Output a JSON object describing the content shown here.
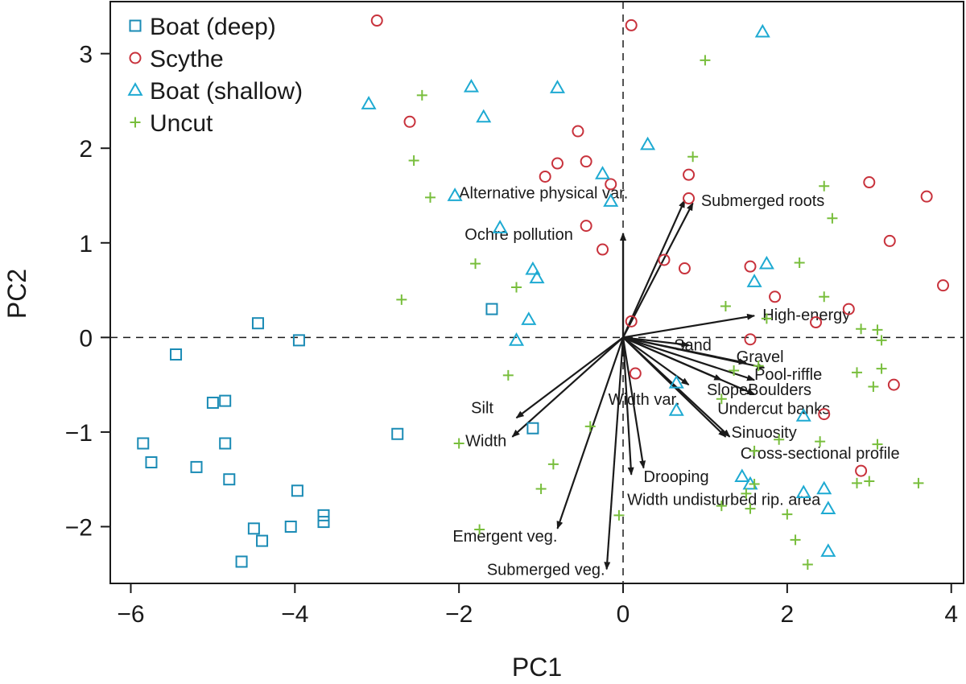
{
  "chart_data": {
    "type": "scatter",
    "title": "",
    "xlabel": "PC1",
    "ylabel": "PC2",
    "xlim": [
      -6.25,
      4.15
    ],
    "ylim": [
      -2.6,
      3.55
    ],
    "xticks": [
      "−6",
      "−4",
      "−2",
      "0",
      "2",
      "4"
    ],
    "xtick_values": [
      -6,
      -4,
      -2,
      0,
      2,
      4
    ],
    "yticks": [
      "−2",
      "−1",
      "0",
      "1",
      "2",
      "3"
    ],
    "ytick_values": [
      -2,
      -1,
      0,
      1,
      2,
      3
    ],
    "zero_lines": true,
    "grid": false,
    "legend_position": "top-left",
    "series": [
      {
        "name": "Boat (deep)",
        "marker": "square",
        "color": "#1a8bb5",
        "points": [
          [
            -4.45,
            0.15
          ],
          [
            -3.95,
            -0.03
          ],
          [
            -5.45,
            -0.18
          ],
          [
            -4.85,
            -0.67
          ],
          [
            -5.0,
            -0.69
          ],
          [
            -4.85,
            -1.12
          ],
          [
            -5.85,
            -1.12
          ],
          [
            -5.75,
            -1.32
          ],
          [
            -5.2,
            -1.37
          ],
          [
            -4.8,
            -1.5
          ],
          [
            -3.97,
            -1.62
          ],
          [
            -3.65,
            -1.88
          ],
          [
            -3.65,
            -1.95
          ],
          [
            -4.05,
            -2.0
          ],
          [
            -4.5,
            -2.02
          ],
          [
            -4.4,
            -2.15
          ],
          [
            -4.65,
            -2.37
          ],
          [
            -2.75,
            -1.02
          ],
          [
            -1.1,
            -0.96
          ],
          [
            -1.6,
            0.3
          ]
        ]
      },
      {
        "name": "Scythe",
        "marker": "circle",
        "color": "#c8323c",
        "points": [
          [
            -3.0,
            3.35
          ],
          [
            0.1,
            3.3
          ],
          [
            -2.6,
            2.28
          ],
          [
            -0.55,
            2.18
          ],
          [
            -0.8,
            1.84
          ],
          [
            -0.45,
            1.86
          ],
          [
            -0.95,
            1.7
          ],
          [
            -0.15,
            1.62
          ],
          [
            0.8,
            1.72
          ],
          [
            0.8,
            1.47
          ],
          [
            -0.45,
            1.18
          ],
          [
            -0.25,
            0.93
          ],
          [
            0.5,
            0.82
          ],
          [
            0.75,
            0.73
          ],
          [
            1.55,
            0.75
          ],
          [
            1.85,
            0.43
          ],
          [
            3.0,
            1.64
          ],
          [
            3.7,
            1.49
          ],
          [
            3.25,
            1.02
          ],
          [
            3.9,
            0.55
          ],
          [
            2.75,
            0.3
          ],
          [
            2.35,
            0.16
          ],
          [
            1.55,
            -0.02
          ],
          [
            0.1,
            0.17
          ],
          [
            0.15,
            -0.38
          ],
          [
            3.3,
            -0.5
          ],
          [
            2.45,
            -0.81
          ],
          [
            2.9,
            -1.41
          ]
        ]
      },
      {
        "name": "Boat (shallow)",
        "marker": "triangle",
        "color": "#1eaad2",
        "points": [
          [
            1.7,
            3.23
          ],
          [
            -3.1,
            2.47
          ],
          [
            -1.85,
            2.65
          ],
          [
            -0.8,
            2.64
          ],
          [
            -1.7,
            2.33
          ],
          [
            0.3,
            2.04
          ],
          [
            -0.25,
            1.73
          ],
          [
            -0.15,
            1.44
          ],
          [
            -2.05,
            1.5
          ],
          [
            -1.5,
            1.16
          ],
          [
            -1.1,
            0.72
          ],
          [
            -1.05,
            0.63
          ],
          [
            1.75,
            0.78
          ],
          [
            1.6,
            0.59
          ],
          [
            -1.15,
            0.19
          ],
          [
            -1.3,
            -0.03
          ],
          [
            0.65,
            -0.48
          ],
          [
            0.65,
            -0.77
          ],
          [
            2.2,
            -0.83
          ],
          [
            1.45,
            -1.47
          ],
          [
            1.55,
            -1.55
          ],
          [
            2.45,
            -1.6
          ],
          [
            2.2,
            -1.64
          ],
          [
            2.5,
            -1.81
          ],
          [
            2.5,
            -2.26
          ]
        ]
      },
      {
        "name": "Uncut",
        "marker": "plus",
        "color": "#78be3c",
        "points": [
          [
            1.0,
            2.93
          ],
          [
            -2.45,
            2.56
          ],
          [
            -2.55,
            1.87
          ],
          [
            0.85,
            1.91
          ],
          [
            -2.35,
            1.48
          ],
          [
            2.45,
            1.6
          ],
          [
            2.55,
            1.26
          ],
          [
            -1.8,
            0.78
          ],
          [
            -1.3,
            0.53
          ],
          [
            -2.7,
            0.4
          ],
          [
            2.15,
            0.79
          ],
          [
            2.45,
            0.43
          ],
          [
            1.25,
            0.33
          ],
          [
            1.75,
            0.2
          ],
          [
            2.9,
            0.09
          ],
          [
            3.1,
            0.08
          ],
          [
            3.15,
            -0.03
          ],
          [
            -1.4,
            -0.4
          ],
          [
            1.35,
            -0.35
          ],
          [
            1.65,
            -0.3
          ],
          [
            2.85,
            -0.37
          ],
          [
            3.15,
            -0.33
          ],
          [
            3.05,
            -0.52
          ],
          [
            1.2,
            -0.65
          ],
          [
            1.9,
            -1.08
          ],
          [
            -2.0,
            -1.12
          ],
          [
            -0.4,
            -0.94
          ],
          [
            -0.85,
            -1.34
          ],
          [
            -1.0,
            -1.6
          ],
          [
            -1.75,
            -2.03
          ],
          [
            -0.05,
            -1.88
          ],
          [
            1.6,
            -1.2
          ],
          [
            3.1,
            -1.13
          ],
          [
            2.0,
            -1.87
          ],
          [
            2.1,
            -2.14
          ],
          [
            2.25,
            -2.4
          ],
          [
            1.2,
            -1.78
          ],
          [
            1.55,
            -1.81
          ],
          [
            1.5,
            -1.65
          ],
          [
            3.0,
            -1.52
          ],
          [
            2.85,
            -1.54
          ],
          [
            3.6,
            -1.54
          ],
          [
            2.4,
            -1.1
          ],
          [
            1.6,
            -1.55
          ]
        ]
      }
    ],
    "loadings": [
      {
        "label": "Alternative physical var.",
        "x": 0.0,
        "y": 1.1
      },
      {
        "label": "Ochre pollution",
        "x": 0.0,
        "y": 1.1
      },
      {
        "label": "Submerged roots",
        "x": 0.75,
        "y": 1.45
      },
      {
        "label": "Submerged roots",
        "x": 0.85,
        "y": 1.42
      },
      {
        "label": "High-energy",
        "x": 1.6,
        "y": 0.23
      },
      {
        "label": "Sand",
        "x": 0.8,
        "y": -0.08
      },
      {
        "label": "Gravel",
        "x": 1.5,
        "y": -0.27
      },
      {
        "label": "Pool-riffle",
        "x": 1.72,
        "y": -0.32
      },
      {
        "label": "Slope",
        "x": 1.2,
        "y": -0.45
      },
      {
        "label": "Boulders",
        "x": 1.6,
        "y": -0.45
      },
      {
        "label": "Width var.",
        "x": 0.8,
        "y": -0.5
      },
      {
        "label": "Undercut banks",
        "x": 1.6,
        "y": -0.6
      },
      {
        "label": "Sinuosity",
        "x": 1.25,
        "y": -1.05
      },
      {
        "label": "Cross-sectional profile",
        "x": 1.3,
        "y": -1.05
      },
      {
        "label": "Drooping",
        "x": 0.25,
        "y": -1.38
      },
      {
        "label": "Width undisturbed rip. area",
        "x": 0.1,
        "y": -1.45
      },
      {
        "label": "Silt",
        "x": -1.3,
        "y": -0.85
      },
      {
        "label": "Width",
        "x": -1.35,
        "y": -1.05
      },
      {
        "label": "Emergent veg.",
        "x": -0.8,
        "y": -2.02
      },
      {
        "label": "Submerged veg.",
        "x": -0.2,
        "y": -2.45
      }
    ],
    "arrow_labels": [
      {
        "text": "Alternative physical var.",
        "x": -2.0,
        "y": 1.53,
        "anchor": "start"
      },
      {
        "text": "Ochre pollution",
        "x": -1.93,
        "y": 1.09,
        "anchor": "start"
      },
      {
        "text": "Submerged roots",
        "x": 0.95,
        "y": 1.45,
        "anchor": "start"
      },
      {
        "text": "High-energy",
        "x": 1.7,
        "y": 0.24,
        "anchor": "start"
      },
      {
        "text": "Sand",
        "x": 0.62,
        "y": -0.08,
        "anchor": "start"
      },
      {
        "text": "Gravel",
        "x": 1.38,
        "y": -0.2,
        "anchor": "start"
      },
      {
        "text": "Pool-riffle",
        "x": 1.6,
        "y": -0.39,
        "anchor": "start"
      },
      {
        "text": "SlopeBoulders",
        "x": 1.02,
        "y": -0.55,
        "anchor": "start"
      },
      {
        "text": "Width var.",
        "x": -0.18,
        "y": -0.65,
        "anchor": "start"
      },
      {
        "text": "Undercut banks",
        "x": 1.15,
        "y": -0.75,
        "anchor": "start"
      },
      {
        "text": "Sinuosity",
        "x": 1.32,
        "y": -1.0,
        "anchor": "start"
      },
      {
        "text": "Cross-sectional profile",
        "x": 1.43,
        "y": -1.22,
        "anchor": "start"
      },
      {
        "text": "Drooping",
        "x": 0.25,
        "y": -1.47,
        "anchor": "start"
      },
      {
        "text": "Width undisturbed rip. area",
        "x": 0.05,
        "y": -1.71,
        "anchor": "start"
      },
      {
        "text": "Silt",
        "x": -1.58,
        "y": -0.74,
        "anchor": "end"
      },
      {
        "text": "Width",
        "x": -1.42,
        "y": -1.09,
        "anchor": "end"
      },
      {
        "text": "Emergent veg.",
        "x": -0.8,
        "y": -2.1,
        "anchor": "end"
      },
      {
        "text": "Submerged veg.",
        "x": -0.22,
        "y": -2.45,
        "anchor": "end"
      }
    ]
  }
}
